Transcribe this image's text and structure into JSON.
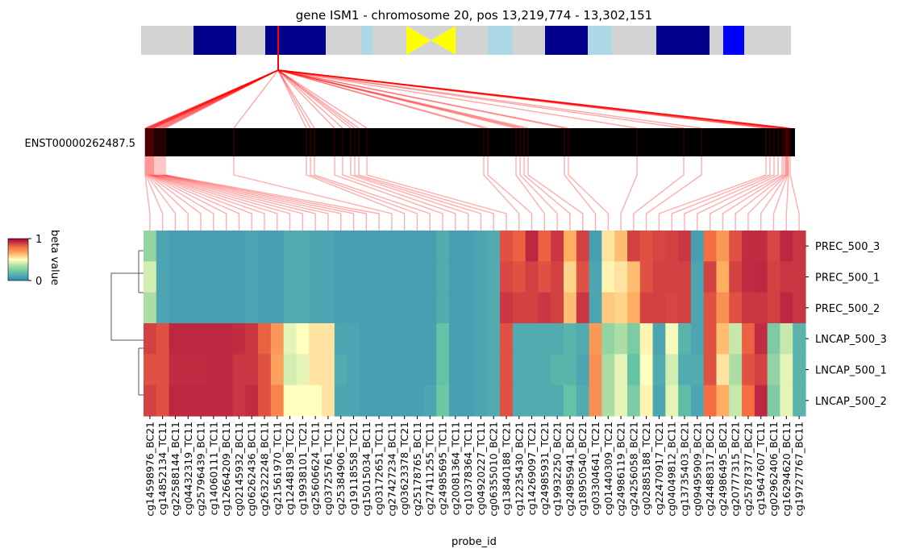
{
  "chart_data": {
    "type": "heatmap",
    "title": "gene ISM1 - chromosome 20, pos 13,219,774 - 13,302,151",
    "xlabel": "probe_id",
    "transcript_label": "ENST00000262487.5",
    "colorbar": {
      "label": "beta value",
      "min_label": "0",
      "max_label": "1",
      "range": [
        0,
        1
      ],
      "colormap": "Spectral_r"
    },
    "chromosome_band_colors": [
      "#d3d3d3",
      "#00008b",
      "#d3d3d3",
      "#00008b",
      "#d3d3d3",
      "#add8e6",
      "#d3d3d3",
      "#ffff00",
      "#d3d3d3",
      "#add8e6",
      "#d3d3d3",
      "#00008b",
      "#add8e6",
      "#d3d3d3",
      "#00008b",
      "#d3d3d3",
      "#0000ff",
      "#d3d3d3"
    ],
    "rows": [
      "PREC_500_3",
      "PREC_500_1",
      "PREC_500_2",
      "LNCAP_500_3",
      "LNCAP_500_1",
      "LNCAP_500_2"
    ],
    "columns": [
      "cg14598976_BC21",
      "cg14852134_TC11",
      "cg22588144_BC11",
      "cg04432319_TC11",
      "cg25796439_BC11",
      "cg14060111_TC11",
      "cg12664209_BC11",
      "cg02145932_BC11",
      "cg06262436_BC11",
      "cg26322248_BC11",
      "cg21561970_TC11",
      "cg12448198_TC21",
      "cg19938101_TC21",
      "cg25606624_TC11",
      "cg03725761_TC11",
      "cg25384906_TC21",
      "cg19118558_TC21",
      "cg15015034_BC11",
      "cg03172651_TC11",
      "cg27427234_BC11",
      "cg03623378_TC21",
      "cg25178765_BC11",
      "cg27411255_TC11",
      "cg24985695_TC11",
      "cg20081364_TC11",
      "cg10378364_TC11",
      "cg04920227_TC11",
      "cg06355010_BC21",
      "cg13840188_TC21",
      "cg12235430_BC21",
      "cg14269097_TC21",
      "cg24985931_TC21",
      "cg19932250_BC21",
      "cg24985941_BC21",
      "cg18950540_BC21",
      "cg03304641_TC21",
      "cg01440309_TC21",
      "cg24986119_BC21",
      "cg24256058_BC21",
      "cg02885188_TC21",
      "cg22470917_TC21",
      "cg04049812_BC11",
      "cg13735403_BC21",
      "cg09495909_BC21",
      "cg24488317_BC21",
      "cg24986495_BC21",
      "cg20777315_BC21",
      "cg25787377_BC21",
      "cg19647607_TC11",
      "cg02962406_BC11",
      "cg16294620_BC11",
      "cg19727767_BC11"
    ],
    "values": [
      [
        0.3,
        0.1,
        0.08,
        0.08,
        0.08,
        0.08,
        0.08,
        0.08,
        0.1,
        0.08,
        0.08,
        0.12,
        0.12,
        0.1,
        0.1,
        0.08,
        0.08,
        0.08,
        0.08,
        0.08,
        0.08,
        0.08,
        0.08,
        0.12,
        0.08,
        0.08,
        0.1,
        0.12,
        0.85,
        0.82,
        0.93,
        0.82,
        0.9,
        0.65,
        0.88,
        0.08,
        0.55,
        0.62,
        0.88,
        0.85,
        0.87,
        0.88,
        0.9,
        0.08,
        0.8,
        0.7,
        0.85,
        0.92,
        0.92,
        0.87,
        0.93,
        0.9
      ],
      [
        0.42,
        0.1,
        0.08,
        0.08,
        0.08,
        0.08,
        0.08,
        0.08,
        0.1,
        0.08,
        0.08,
        0.12,
        0.12,
        0.1,
        0.1,
        0.08,
        0.08,
        0.08,
        0.08,
        0.08,
        0.08,
        0.08,
        0.08,
        0.12,
        0.08,
        0.08,
        0.1,
        0.12,
        0.87,
        0.85,
        0.88,
        0.85,
        0.88,
        0.58,
        0.85,
        0.1,
        0.52,
        0.55,
        0.62,
        0.85,
        0.88,
        0.88,
        0.88,
        0.1,
        0.88,
        0.65,
        0.88,
        0.92,
        0.93,
        0.88,
        0.9,
        0.9
      ],
      [
        0.35,
        0.1,
        0.08,
        0.08,
        0.08,
        0.08,
        0.08,
        0.08,
        0.1,
        0.08,
        0.08,
        0.12,
        0.12,
        0.1,
        0.1,
        0.08,
        0.08,
        0.08,
        0.08,
        0.08,
        0.08,
        0.08,
        0.08,
        0.12,
        0.08,
        0.08,
        0.1,
        0.12,
        0.9,
        0.88,
        0.88,
        0.9,
        0.88,
        0.62,
        0.9,
        0.1,
        0.6,
        0.58,
        0.65,
        0.88,
        0.88,
        0.87,
        0.88,
        0.1,
        0.85,
        0.72,
        0.85,
        0.9,
        0.9,
        0.88,
        0.93,
        0.9
      ],
      [
        0.88,
        0.85,
        0.93,
        0.93,
        0.93,
        0.93,
        0.93,
        0.92,
        0.9,
        0.82,
        0.7,
        0.45,
        0.5,
        0.55,
        0.55,
        0.1,
        0.1,
        0.08,
        0.08,
        0.08,
        0.08,
        0.08,
        0.08,
        0.2,
        0.08,
        0.08,
        0.1,
        0.12,
        0.85,
        0.12,
        0.12,
        0.12,
        0.12,
        0.15,
        0.12,
        0.7,
        0.3,
        0.35,
        0.25,
        0.52,
        0.1,
        0.48,
        0.15,
        0.1,
        0.85,
        0.62,
        0.4,
        0.82,
        0.92,
        0.25,
        0.4,
        0.15
      ],
      [
        0.85,
        0.85,
        0.92,
        0.92,
        0.92,
        0.93,
        0.93,
        0.9,
        0.9,
        0.85,
        0.68,
        0.42,
        0.45,
        0.55,
        0.55,
        0.12,
        0.1,
        0.08,
        0.08,
        0.08,
        0.08,
        0.08,
        0.08,
        0.2,
        0.08,
        0.08,
        0.1,
        0.12,
        0.85,
        0.12,
        0.12,
        0.12,
        0.15,
        0.15,
        0.1,
        0.72,
        0.35,
        0.45,
        0.2,
        0.5,
        0.12,
        0.42,
        0.12,
        0.12,
        0.85,
        0.55,
        0.35,
        0.85,
        0.88,
        0.3,
        0.45,
        0.15
      ],
      [
        0.88,
        0.85,
        0.93,
        0.93,
        0.93,
        0.93,
        0.93,
        0.9,
        0.92,
        0.85,
        0.75,
        0.5,
        0.5,
        0.5,
        0.55,
        0.1,
        0.1,
        0.08,
        0.08,
        0.08,
        0.08,
        0.08,
        0.1,
        0.22,
        0.08,
        0.08,
        0.1,
        0.12,
        0.85,
        0.12,
        0.12,
        0.12,
        0.12,
        0.2,
        0.12,
        0.72,
        0.35,
        0.45,
        0.25,
        0.52,
        0.1,
        0.45,
        0.18,
        0.1,
        0.8,
        0.65,
        0.4,
        0.8,
        0.93,
        0.25,
        0.45,
        0.15
      ]
    ]
  }
}
